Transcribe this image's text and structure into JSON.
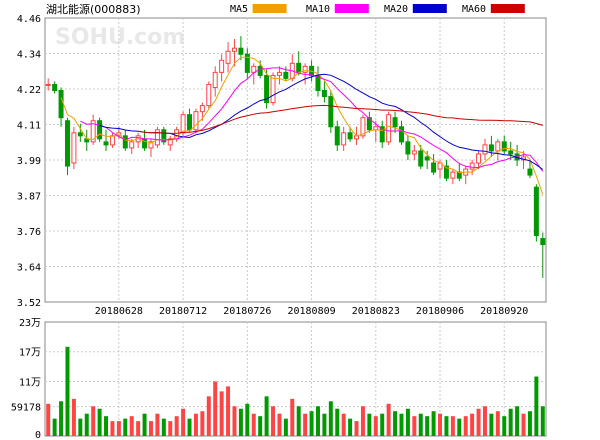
{
  "chart_data": {
    "type": "candlestick",
    "title": "湖北能源(000883)",
    "watermark": "SOHU.com",
    "legend": [
      {
        "name": "MA5",
        "color": "#f0a000"
      },
      {
        "name": "MA10",
        "color": "#ff00ff"
      },
      {
        "name": "MA20",
        "color": "#0000cc"
      },
      {
        "name": "MA60",
        "color": "#cc0000"
      }
    ],
    "colors": {
      "up": "#ff4444",
      "down": "#009900",
      "grid": "#cccccc",
      "border": "#888888"
    },
    "price_axis": {
      "ylim": [
        3.52,
        4.46
      ],
      "ticks": [
        "4.46",
        "4.34",
        "4.22",
        "4.11",
        "3.99",
        "3.87",
        "3.76",
        "3.64",
        "3.52"
      ]
    },
    "volume_axis": {
      "ylim": [
        0,
        230000
      ],
      "ticks": [
        {
          "label": "23万",
          "value": 230000
        },
        {
          "label": "17万",
          "value": 170000
        },
        {
          "label": "11万",
          "value": 110000
        },
        {
          "label": "59178",
          "value": 59178
        },
        {
          "label": "0",
          "value": 0
        }
      ]
    },
    "x_date_labels": [
      {
        "label": "20180628",
        "index": 11
      },
      {
        "label": "20180712",
        "index": 21
      },
      {
        "label": "20180726",
        "index": 31
      },
      {
        "label": "20180809",
        "index": 41
      },
      {
        "label": "20180823",
        "index": 51
      },
      {
        "label": "20180906",
        "index": 61
      },
      {
        "label": "20180920",
        "index": 71
      }
    ],
    "candles": [
      [
        4.24,
        4.26,
        4.22,
        4.24,
        65000
      ],
      [
        4.24,
        4.25,
        4.21,
        4.22,
        35000
      ],
      [
        4.22,
        4.23,
        4.1,
        4.13,
        70000
      ],
      [
        4.12,
        4.13,
        3.94,
        3.97,
        180000
      ],
      [
        3.98,
        4.1,
        3.96,
        4.08,
        75000
      ],
      [
        4.08,
        4.11,
        4.05,
        4.07,
        35000
      ],
      [
        4.06,
        4.09,
        4.02,
        4.05,
        45000
      ],
      [
        4.05,
        4.14,
        4.04,
        4.12,
        60000
      ],
      [
        4.12,
        4.13,
        4.05,
        4.06,
        55000
      ],
      [
        4.05,
        4.09,
        4.02,
        4.04,
        40000
      ],
      [
        4.04,
        4.08,
        4.03,
        4.07,
        30000
      ],
      [
        4.07,
        4.1,
        4.06,
        4.08,
        30000
      ],
      [
        4.07,
        4.09,
        4.02,
        4.03,
        35000
      ],
      [
        4.03,
        4.06,
        4.01,
        4.05,
        40000
      ],
      [
        4.05,
        4.08,
        4.03,
        4.07,
        30000
      ],
      [
        4.06,
        4.09,
        4.02,
        4.03,
        45000
      ],
      [
        4.03,
        4.06,
        4.0,
        4.05,
        30000
      ],
      [
        4.04,
        4.1,
        4.03,
        4.09,
        45000
      ],
      [
        4.09,
        4.1,
        4.04,
        4.05,
        35000
      ],
      [
        4.04,
        4.07,
        4.02,
        4.06,
        30000
      ],
      [
        4.06,
        4.1,
        4.05,
        4.09,
        40000
      ],
      [
        4.08,
        4.15,
        4.07,
        4.14,
        55000
      ],
      [
        4.14,
        4.16,
        4.08,
        4.09,
        35000
      ],
      [
        4.09,
        4.16,
        4.08,
        4.15,
        45000
      ],
      [
        4.15,
        4.18,
        4.12,
        4.17,
        50000
      ],
      [
        4.17,
        4.25,
        4.16,
        4.24,
        80000
      ],
      [
        4.23,
        4.3,
        4.2,
        4.28,
        110000
      ],
      [
        4.28,
        4.34,
        4.25,
        4.32,
        90000
      ],
      [
        4.31,
        4.38,
        4.28,
        4.35,
        100000
      ],
      [
        4.35,
        4.39,
        4.3,
        4.36,
        60000
      ],
      [
        4.36,
        4.4,
        4.32,
        4.34,
        55000
      ],
      [
        4.34,
        4.36,
        4.26,
        4.28,
        65000
      ],
      [
        4.28,
        4.31,
        4.24,
        4.3,
        45000
      ],
      [
        4.3,
        4.32,
        4.26,
        4.27,
        40000
      ],
      [
        4.27,
        4.29,
        4.16,
        4.18,
        80000
      ],
      [
        4.18,
        4.28,
        4.17,
        4.27,
        60000
      ],
      [
        4.27,
        4.3,
        4.24,
        4.28,
        45000
      ],
      [
        4.28,
        4.3,
        4.25,
        4.26,
        35000
      ],
      [
        4.26,
        4.34,
        4.25,
        4.31,
        75000
      ],
      [
        4.31,
        4.35,
        4.27,
        4.28,
        60000
      ],
      [
        4.28,
        4.31,
        4.24,
        4.3,
        45000
      ],
      [
        4.3,
        4.32,
        4.25,
        4.27,
        50000
      ],
      [
        4.27,
        4.3,
        4.2,
        4.22,
        60000
      ],
      [
        4.22,
        4.25,
        4.18,
        4.2,
        45000
      ],
      [
        4.2,
        4.22,
        4.08,
        4.1,
        70000
      ],
      [
        4.1,
        4.12,
        4.02,
        4.04,
        55000
      ],
      [
        4.04,
        4.1,
        4.02,
        4.08,
        45000
      ],
      [
        4.08,
        4.1,
        4.05,
        4.06,
        35000
      ],
      [
        4.06,
        4.1,
        4.04,
        4.07,
        30000
      ],
      [
        4.07,
        4.14,
        4.06,
        4.13,
        60000
      ],
      [
        4.13,
        4.15,
        4.08,
        4.09,
        45000
      ],
      [
        4.09,
        4.12,
        4.05,
        4.1,
        40000
      ],
      [
        4.1,
        4.12,
        4.03,
        4.05,
        45000
      ],
      [
        4.05,
        4.15,
        4.04,
        4.14,
        65000
      ],
      [
        4.13,
        4.15,
        4.08,
        4.1,
        50000
      ],
      [
        4.1,
        4.12,
        4.04,
        4.05,
        45000
      ],
      [
        4.05,
        4.07,
        3.99,
        4.01,
        55000
      ],
      [
        4.01,
        4.04,
        3.99,
        4.02,
        40000
      ],
      [
        4.02,
        4.04,
        3.96,
        3.97,
        45000
      ],
      [
        4.0,
        4.02,
        3.96,
        3.99,
        40000
      ],
      [
        3.98,
        4.01,
        3.94,
        3.95,
        50000
      ],
      [
        3.96,
        3.99,
        3.93,
        3.98,
        45000
      ],
      [
        3.97,
        3.99,
        3.92,
        3.93,
        40000
      ],
      [
        3.93,
        3.96,
        3.91,
        3.95,
        40000
      ],
      [
        3.95,
        3.98,
        3.92,
        3.93,
        35000
      ],
      [
        3.94,
        3.97,
        3.91,
        3.96,
        40000
      ],
      [
        3.96,
        3.99,
        3.94,
        3.98,
        45000
      ],
      [
        3.98,
        4.02,
        3.96,
        4.01,
        55000
      ],
      [
        4.01,
        4.06,
        3.99,
        4.04,
        60000
      ],
      [
        4.04,
        4.07,
        4.0,
        4.02,
        45000
      ],
      [
        4.02,
        4.06,
        3.99,
        4.05,
        50000
      ],
      [
        4.05,
        4.07,
        4.01,
        4.02,
        40000
      ],
      [
        4.02,
        4.05,
        3.99,
        4.01,
        55000
      ],
      [
        4.01,
        4.04,
        3.97,
        3.99,
        60000
      ],
      [
        3.99,
        4.02,
        3.96,
        4.0,
        45000
      ],
      [
        3.96,
        3.99,
        3.93,
        3.94,
        50000
      ],
      [
        3.9,
        3.91,
        3.72,
        3.74,
        120000
      ],
      [
        3.73,
        3.75,
        3.6,
        3.71,
        60000
      ]
    ]
  }
}
